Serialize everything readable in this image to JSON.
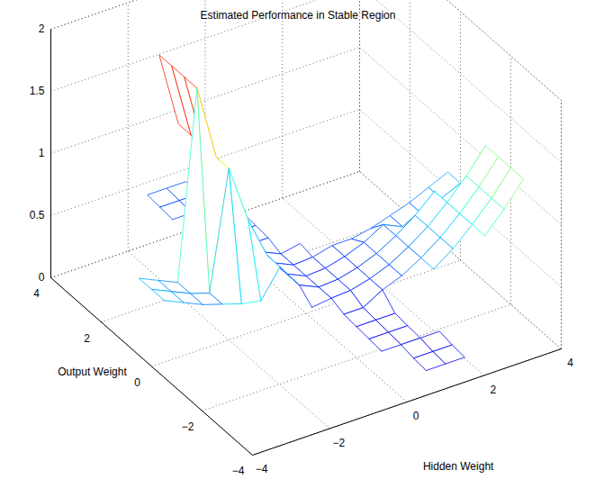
{
  "chart_data": {
    "type": "mesh",
    "title": "Estimated Performance in Stable Region",
    "xlabel": "Hidden Weight",
    "ylabel": "Output Weight",
    "x": [
      -4,
      -3.5,
      -3,
      -2.5,
      -2,
      -1.5,
      -1,
      -0.5,
      0,
      0.5,
      1,
      1.5,
      2,
      2.5,
      3,
      3.5,
      4
    ],
    "y": [
      -4,
      -3.5,
      -3,
      -2.5,
      -2,
      -1.5,
      -1,
      -0.5,
      0,
      0.5,
      1,
      1.5,
      2,
      2.5,
      3,
      3.5,
      4
    ],
    "z": [
      [
        null,
        null,
        null,
        null,
        null,
        null,
        null,
        null,
        null,
        0.2,
        0.2,
        0.2,
        null,
        null,
        null,
        null,
        null
      ],
      [
        null,
        null,
        null,
        null,
        null,
        null,
        null,
        null,
        null,
        0.21,
        0.21,
        0.21,
        null,
        null,
        null,
        null,
        null
      ],
      [
        null,
        null,
        null,
        null,
        null,
        null,
        null,
        null,
        0.23,
        0.23,
        0.23,
        0.23,
        null,
        null,
        null,
        null,
        1.1
      ],
      [
        null,
        null,
        null,
        null,
        null,
        null,
        null,
        null,
        0.24,
        0.24,
        0.24,
        null,
        null,
        null,
        0.75,
        0.91,
        1.1
      ],
      [
        null,
        null,
        null,
        null,
        null,
        null,
        null,
        null,
        0.25,
        0.25,
        0.25,
        null,
        0.5,
        0.61,
        0.75,
        0.91,
        1.1
      ],
      [
        null,
        null,
        null,
        null,
        null,
        null,
        null,
        null,
        0.26,
        0.26,
        0.35,
        0.41,
        0.5,
        0.61,
        0.75,
        0.91,
        1.1
      ],
      [
        null,
        null,
        null,
        null,
        null,
        null,
        null,
        0.28,
        0.3,
        0.31,
        0.35,
        0.41,
        0.5,
        0.61,
        0.75,
        0.91,
        1.1
      ],
      [
        0.62,
        0.55,
        0.48,
        0.43,
        0.38,
        0.35,
        0.57,
        0.37,
        0.3,
        0.31,
        0.35,
        0.41,
        0.5,
        0.61,
        0.75,
        0.55,
        0.62
      ],
      [
        0.62,
        0.55,
        0.48,
        0.43,
        1.38,
        0.91,
        0.57,
        0.37,
        0.3,
        0.31,
        0.35,
        0.41,
        0.5,
        0.43,
        0.48,
        0.55,
        0.62
      ],
      [
        0.62,
        0.55,
        0.48,
        1.99,
        1.38,
        0.91,
        0.57,
        0.37,
        0.3,
        0.31,
        0.35,
        0.35,
        0.38,
        0.43,
        0.48,
        0.55,
        0.62
      ],
      [
        null,
        null,
        null,
        1.99,
        1.38,
        0.91,
        0.57,
        0.37,
        0.3,
        0.33,
        null,
        null,
        null,
        null,
        null,
        null,
        null
      ],
      [
        null,
        null,
        null,
        1.99,
        1.38,
        0.91,
        0.57,
        0.34,
        0.34,
        null,
        null,
        null,
        null,
        null,
        null,
        null,
        null
      ],
      [
        null,
        null,
        null,
        1.99,
        1.38,
        null,
        0.35,
        0.35,
        0.35,
        null,
        null,
        null,
        null,
        null,
        null,
        null,
        null
      ],
      [
        null,
        null,
        null,
        null,
        null,
        null,
        0.36,
        0.36,
        0.36,
        null,
        null,
        null,
        null,
        null,
        null,
        null,
        null
      ],
      [
        null,
        null,
        null,
        null,
        null,
        0.38,
        0.38,
        0.38,
        0.38,
        null,
        null,
        null,
        null,
        null,
        null,
        null,
        null
      ],
      [
        null,
        null,
        null,
        null,
        null,
        0.39,
        0.39,
        0.39,
        null,
        null,
        null,
        null,
        null,
        null,
        null,
        null,
        null
      ],
      [
        null,
        null,
        null,
        null,
        null,
        0.4,
        0.4,
        0.4,
        null,
        null,
        null,
        null,
        null,
        null,
        null,
        null,
        null
      ]
    ],
    "xlim": [
      -4,
      4
    ],
    "ylim": [
      -4,
      4
    ],
    "zlim": [
      0,
      2
    ],
    "xticks": [
      {
        "value": -4,
        "label": "−4"
      },
      {
        "value": -2,
        "label": "−2"
      },
      0,
      2,
      4
    ],
    "yticks": [
      {
        "value": -4,
        "label": "−4"
      },
      {
        "value": -2,
        "label": "−2"
      },
      0,
      2,
      4
    ],
    "zticks": [
      0,
      0.5,
      1,
      1.5,
      2
    ],
    "grid": true
  }
}
